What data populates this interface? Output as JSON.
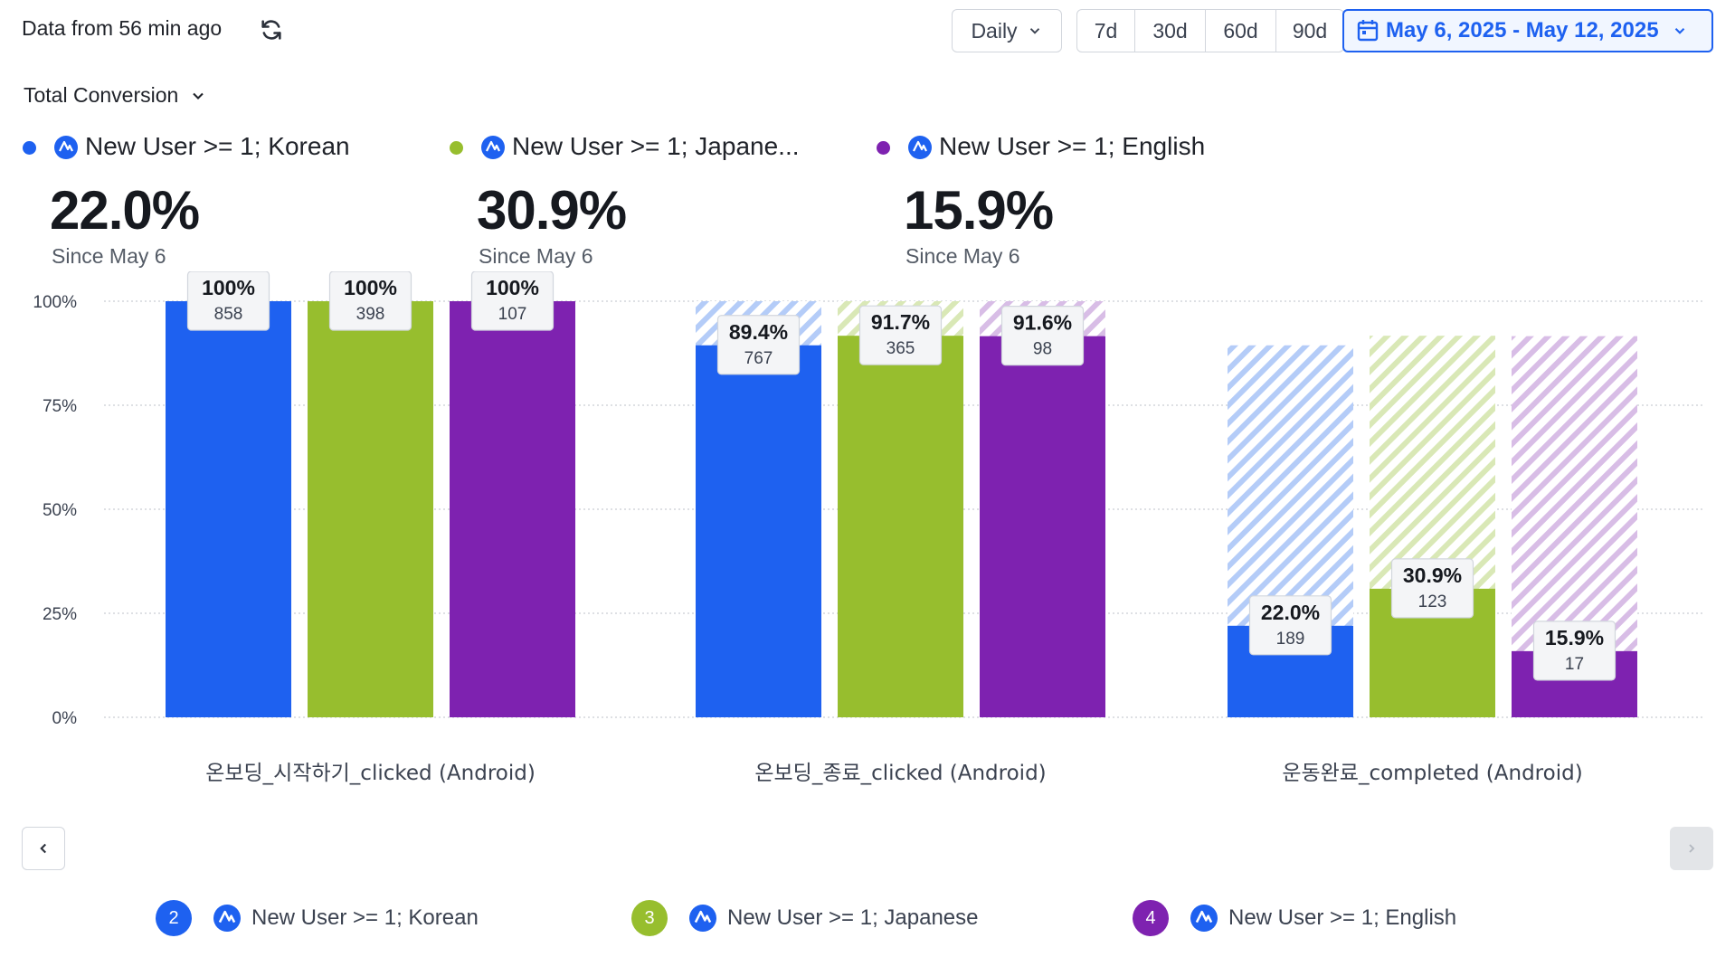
{
  "header": {
    "data_age": "Data from 56 min ago",
    "interval": "Daily",
    "ranges": [
      "7d",
      "30d",
      "60d",
      "90d"
    ],
    "date_range": "May 6, 2025 - May 12, 2025",
    "metric": "Total Conversion"
  },
  "segments": [
    {
      "name": "New User >= 1; Korean",
      "short_name": "New User >= 1; Korean",
      "color": "#1e61f0",
      "conversion": "22.0%",
      "since": "Since May 6",
      "badge": "2"
    },
    {
      "name": "New User >= 1; Japanese",
      "short_name": "New User >= 1; Japane...",
      "color": "#97be2e",
      "conversion": "30.9%",
      "since": "Since May 6",
      "badge": "3"
    },
    {
      "name": "New User >= 1; English",
      "short_name": "New User >= 1; English",
      "color": "#7e22b0",
      "conversion": "15.9%",
      "since": "Since May 6",
      "badge": "4"
    }
  ],
  "chart_data": {
    "type": "bar",
    "y_ticks": [
      "100%",
      "75%",
      "50%",
      "25%",
      "0%"
    ],
    "ylim": [
      0,
      100
    ],
    "categories": [
      "온보딩_시작하기_clicked (Android)",
      "온보딩_종료_clicked (Android)",
      "운동완료_completed (Android)"
    ],
    "series": [
      {
        "name": "New User >= 1; Korean",
        "color": "#1e61f0",
        "light": "#b4ccf8",
        "values": [
          100,
          89.4,
          22.0
        ],
        "previous": [
          null,
          100,
          89.4
        ],
        "labels": [
          "100%",
          "89.4%",
          "22.0%"
        ],
        "counts": [
          "858",
          "767",
          "189"
        ]
      },
      {
        "name": "New User >= 1; Japanese",
        "color": "#97be2e",
        "light": "#d9e8b6",
        "values": [
          100,
          91.7,
          30.9
        ],
        "previous": [
          null,
          100,
          91.7
        ],
        "labels": [
          "100%",
          "91.7%",
          "30.9%"
        ],
        "counts": [
          "398",
          "365",
          "123"
        ]
      },
      {
        "name": "New User >= 1; English",
        "color": "#7e22b0",
        "light": "#d8bde6",
        "values": [
          100,
          91.6,
          15.9
        ],
        "previous": [
          null,
          100,
          91.6
        ],
        "labels": [
          "100%",
          "91.6%",
          "15.9%"
        ],
        "counts": [
          "107",
          "98",
          "17"
        ]
      }
    ]
  }
}
